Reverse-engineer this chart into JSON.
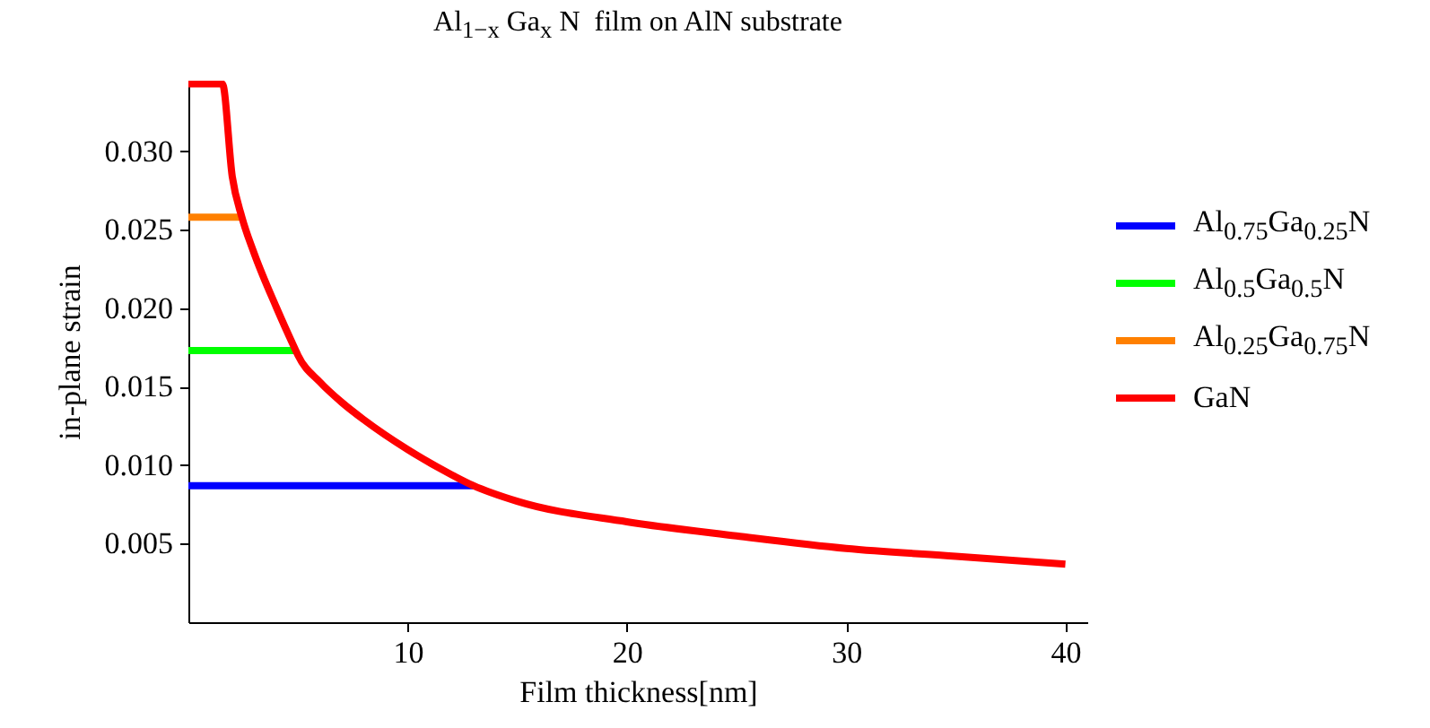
{
  "chart_data": {
    "type": "line",
    "title": "Al$_{1−x}$ Ga$_{x}$ N  film on AlN substrate",
    "xlabel": "Film thickness[nm]",
    "ylabel": "in-plane strain",
    "xlim": [
      0,
      41
    ],
    "ylim": [
      0,
      0.0345
    ],
    "xticks": [
      10,
      20,
      30,
      40
    ],
    "yticks": [
      0.005,
      {
        "value": 0.01,
        "label": "0.010"
      },
      0.015,
      {
        "value": 0.02,
        "label": "0.020"
      },
      0.025,
      {
        "value": 0.03,
        "label": "0.030"
      }
    ],
    "grid": false,
    "legend": "right",
    "series": [
      {
        "name": "Al$_{0.75}$Ga$_{0.25}$N",
        "color": "#0000ff",
        "x": [
          0,
          13
        ],
        "values": [
          0.0087,
          0.0087
        ]
      },
      {
        "name": "Al$_{0.5}$Ga$_{0.5}$N",
        "color": "#00ff00",
        "x": [
          0,
          4.9
        ],
        "values": [
          0.0173,
          0.0173
        ]
      },
      {
        "name": "Al$_{0.25}$Ga$_{0.75}$N",
        "color": "#ff8000",
        "x": [
          0,
          2.44
        ],
        "values": [
          0.0258,
          0.0258
        ]
      },
      {
        "name": "GaN",
        "color": "#ff0000",
        "x": [
          0,
          1.55,
          2,
          2.44,
          3,
          4,
          4.9,
          5,
          6,
          7,
          8,
          10,
          12,
          13,
          15,
          20,
          25,
          30,
          35,
          40
        ],
        "values": [
          0.0343,
          0.0343,
          0.0284,
          0.0258,
          0.0235,
          0.0201,
          0.0173,
          0.017,
          0.0153,
          0.014,
          0.0129,
          0.011,
          0.0094,
          0.0087,
          0.0077,
          0.0064,
          0.0055,
          0.0047,
          0.0042,
          0.0037
        ]
      }
    ]
  }
}
